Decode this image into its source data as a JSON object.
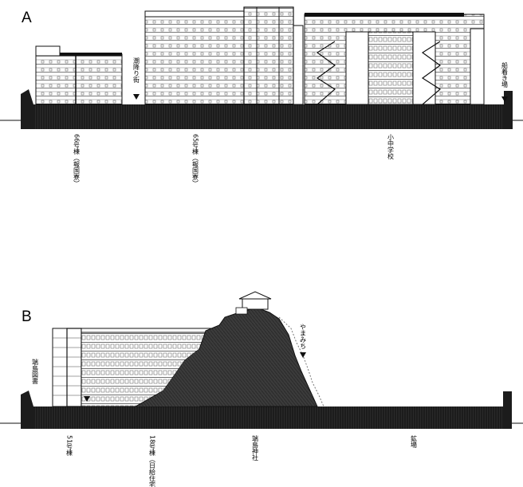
{
  "section_a": {
    "letter": "A",
    "labels": {
      "building_66": "66号棟（報国寮）",
      "sea_street": "潮降り街",
      "building_65": "65号棟（報国寮）",
      "school": "小中学校",
      "boat_landing": "船着き場"
    }
  },
  "section_b": {
    "letter": "B",
    "labels": {
      "library": "端島図書",
      "building_51": "51号棟",
      "building_18": "18号棟（日給住宅）",
      "shrine": "端島神社",
      "yamamichi": "やまみち",
      "mine": "鉱場"
    }
  },
  "colors": {
    "ink": "#111111",
    "ground": "#2a2a2a",
    "paper": "#ffffff",
    "rock": "#3a3a3a"
  }
}
